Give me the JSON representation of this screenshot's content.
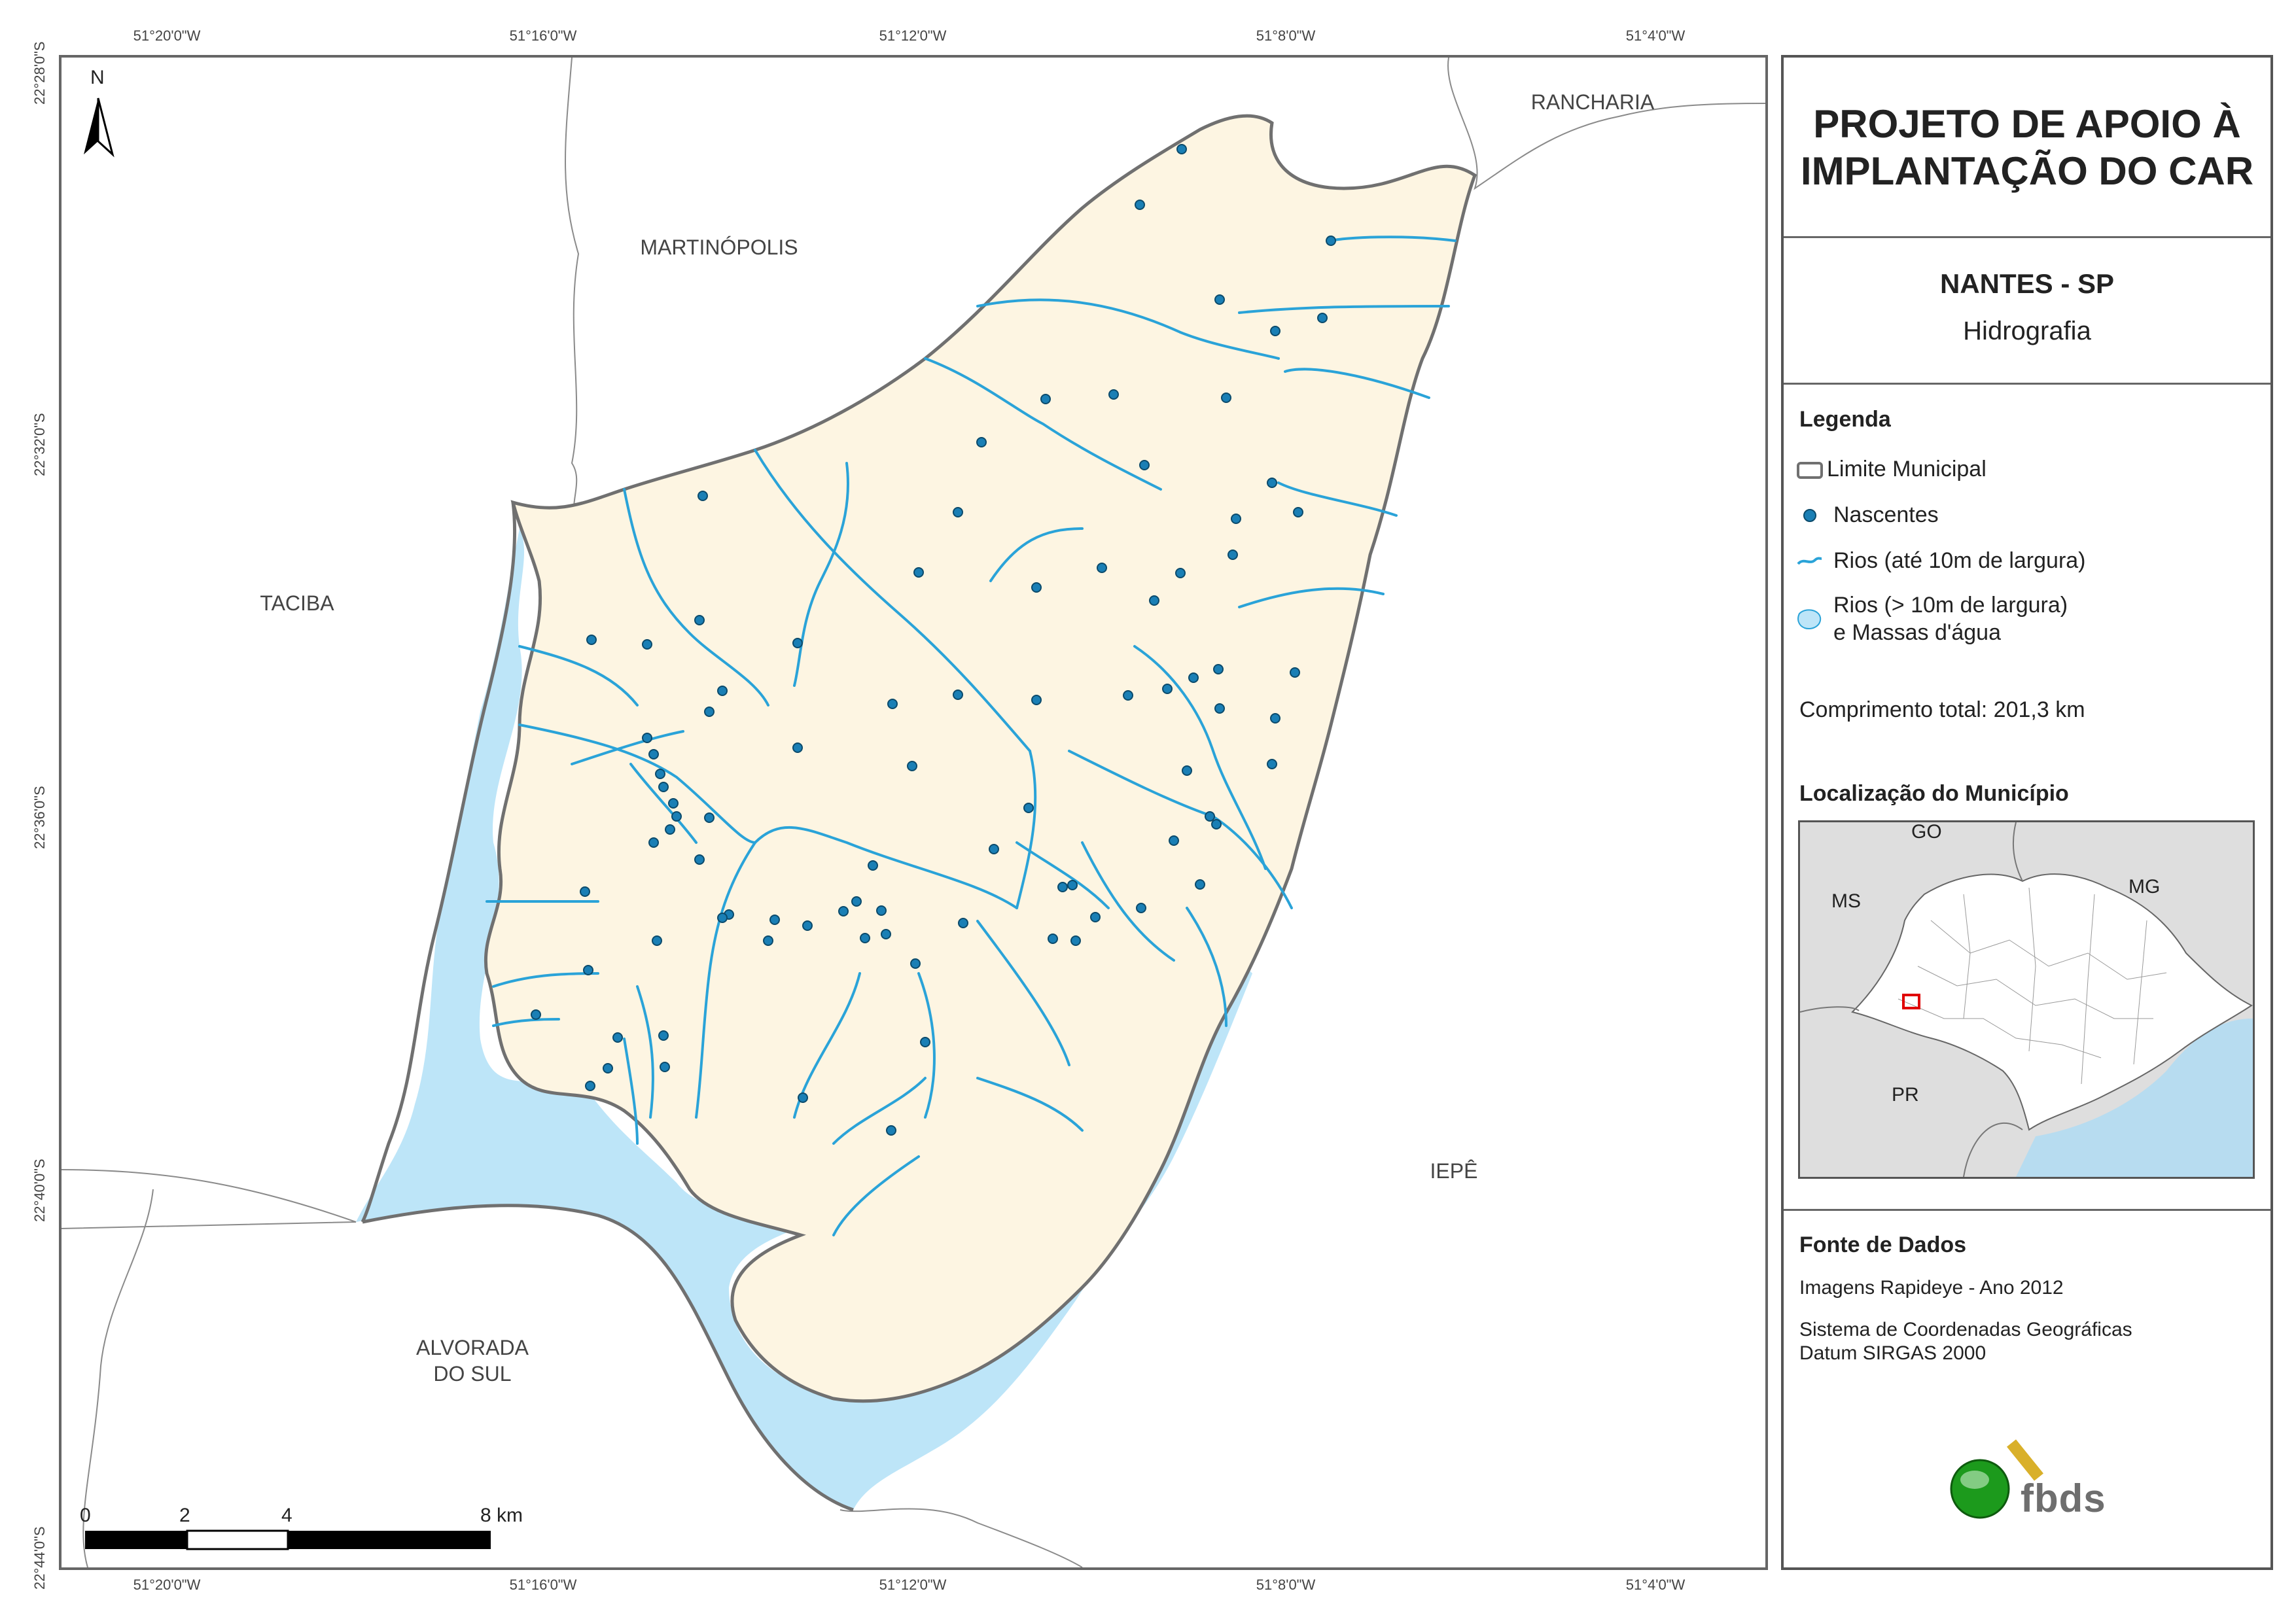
{
  "map": {
    "coords_top": [
      "51°20'0\"W",
      "51°16'0\"W",
      "51°12'0\"W",
      "51°8'0\"W",
      "51°4'0\"W"
    ],
    "coords_bottom": [
      "51°20'0\"W",
      "51°16'0\"W",
      "51°12'0\"W",
      "51°8'0\"W",
      "51°4'0\"W"
    ],
    "coords_left": [
      "22°28'0\"S",
      "22°32'0\"S",
      "22°36'0\"S",
      "22°40'0\"S",
      "22°44'0\"S"
    ],
    "north_label": "N",
    "neighbors": {
      "rancharia": "RANCHARIA",
      "martinopolis": "MARTINÓPOLIS",
      "taciba": "TACIBA",
      "iepe": "IEPÊ",
      "alvorada_line1": "ALVORADA",
      "alvorada_line2": "DO SUL"
    },
    "scale_labels": [
      "0",
      "2",
      "4",
      "8 km"
    ]
  },
  "panel": {
    "title_line1": "PROJETO DE APOIO À",
    "title_line2": "IMPLANTAÇÃO DO CAR",
    "municipality": "NANTES - SP",
    "theme": "Hidrografia",
    "legend_title": "Legenda",
    "legend_items": [
      "Limite Municipal",
      "Nascentes",
      "Rios (até 10m de largura)",
      "Rios (> 10m de largura)",
      "e Massas d'água"
    ],
    "total_length": "Comprimento total:  201,3 km",
    "location_title": "Localização do Município",
    "location_labels": {
      "go": "GO",
      "ms": "MS",
      "mg": "MG",
      "pr": "PR"
    },
    "sources_title": "Fonte de Dados",
    "source1": "Imagens Rapideye - Ano 2012",
    "source2": "Sistema de Coordenadas Geográficas",
    "source3": "Datum SIRGAS 2000",
    "logo_text": "fbds"
  },
  "colors": {
    "municipality_fill": "#fdf5e2",
    "water": "#bde5f8",
    "river": "#2aa3d8",
    "spring": "#1a7fb5",
    "boundary": "#707070"
  }
}
